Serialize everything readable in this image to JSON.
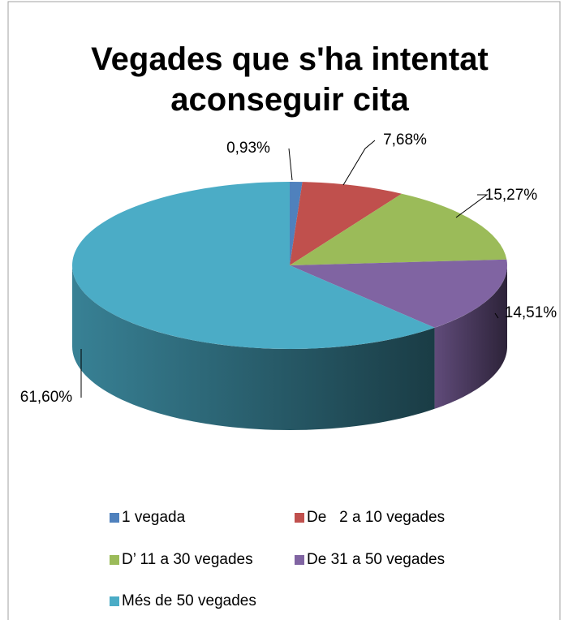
{
  "chart_data": {
    "type": "pie3d",
    "title": "Vegades que s'ha intentat aconseguir cita",
    "categories": [
      "1 vegada",
      "De   2 a 10 vegades",
      "D’ 11 a 30 vegades",
      "De 31 a 50 vegades",
      "Més de 50 vegades"
    ],
    "values": [
      0.93,
      7.68,
      15.27,
      14.51,
      61.6
    ],
    "value_labels": [
      "0,93%",
      "7,68%",
      "15,27%",
      "14,51%",
      "61,60%"
    ],
    "colors": [
      "#4f81bd",
      "#c0504d",
      "#9bbb59",
      "#8064a2",
      "#4bacc6"
    ],
    "legend": "bottom"
  }
}
